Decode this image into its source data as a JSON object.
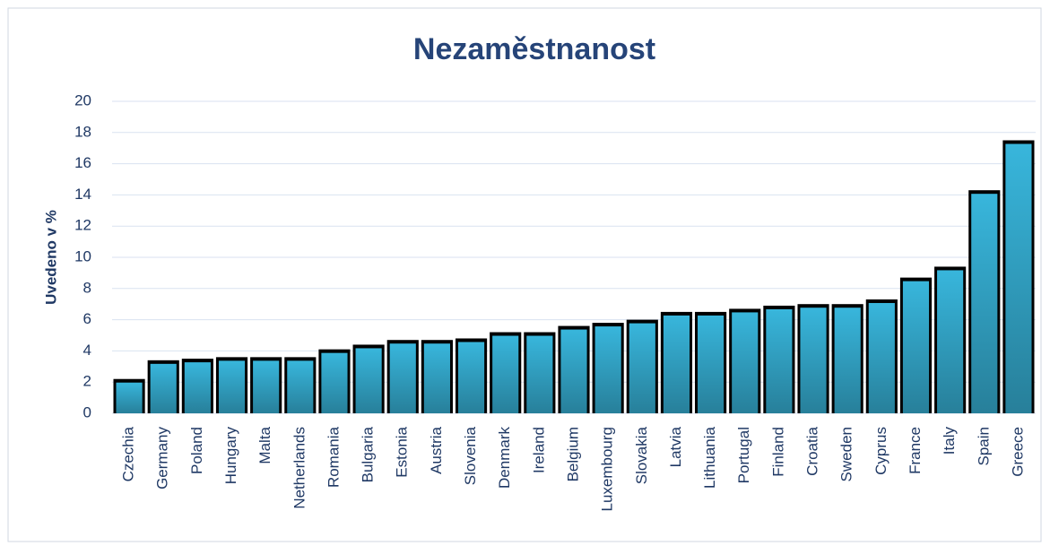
{
  "chart_data": {
    "type": "bar",
    "title": "Nezaměstnanost",
    "y_label": "Uvedeno v  %",
    "categories": [
      "Czechia",
      "Germany",
      "Poland",
      "Hungary",
      "Malta",
      "Netherlands",
      "Romania",
      "Bulgaria",
      "Estonia",
      "Austria",
      "Slovenia",
      "Denmark",
      "Ireland",
      "Belgium",
      "Luxembourg",
      "Slovakia",
      "Latvia",
      "Lithuania",
      "Portugal",
      "Finland",
      "Croatia",
      "Sweden",
      "Cyprus",
      "France",
      "Italy",
      "Spain",
      "Greece"
    ],
    "values": [
      2.2,
      3.4,
      3.5,
      3.6,
      3.6,
      3.6,
      4.1,
      4.4,
      4.7,
      4.7,
      4.8,
      5.2,
      5.2,
      5.6,
      5.8,
      6.0,
      6.5,
      6.5,
      6.7,
      6.9,
      7.0,
      7.0,
      7.3,
      8.7,
      9.4,
      14.3,
      17.5
    ],
    "color": "#38b6dc",
    "border_color": "#000000",
    "ylim": [
      0,
      20
    ],
    "yticks": [
      0,
      2,
      4,
      6,
      8,
      10,
      12,
      14,
      16,
      18,
      20
    ],
    "grid": true
  }
}
